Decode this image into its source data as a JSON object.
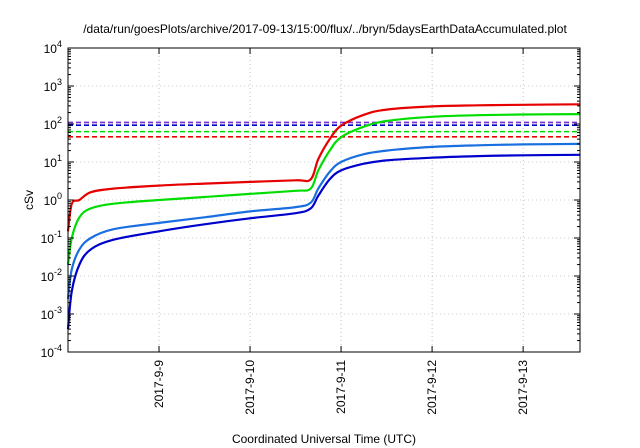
{
  "chart_data": {
    "type": "line",
    "title": "/data/run/goesPlots/archive/2017-09-13/15:00/flux/../bryn/5daysEarthDataAccumulated.plot",
    "xlabel": "Coordinated Universal Time (UTC)",
    "ylabel": "cSv",
    "y_scale": "log",
    "ylim": [
      0.0001,
      10000
    ],
    "xlim": [
      "2017-09-08 00:00",
      "2017-09-13 15:00"
    ],
    "grid": true,
    "legend": "none",
    "y_ticks": [
      {
        "base": "10",
        "exp": "-4",
        "value": 0.0001
      },
      {
        "base": "10",
        "exp": "-3",
        "value": 0.001
      },
      {
        "base": "10",
        "exp": "-2",
        "value": 0.01
      },
      {
        "base": "10",
        "exp": "-1",
        "value": 0.1
      },
      {
        "base": "10",
        "exp": "0",
        "value": 1
      },
      {
        "base": "10",
        "exp": "1",
        "value": 10
      },
      {
        "base": "10",
        "exp": "2",
        "value": 100
      },
      {
        "base": "10",
        "exp": "3",
        "value": 1000
      },
      {
        "base": "10",
        "exp": "4",
        "value": 10000
      }
    ],
    "x_ticks": [
      {
        "label": "2017-9-9",
        "x": "2017-09-09 00:00"
      },
      {
        "label": "2017-9-10",
        "x": "2017-09-10 00:00"
      },
      {
        "label": "2017-9-11",
        "x": "2017-09-11 00:00"
      },
      {
        "label": "2017-9-12",
        "x": "2017-09-12 00:00"
      },
      {
        "label": "2017-9-13",
        "x": "2017-09-13 00:00"
      }
    ],
    "series": [
      {
        "color": "#e60000",
        "x": [
          "2017-09-08 00:00",
          "2017-09-08 01:00",
          "2017-09-08 03:00",
          "2017-09-08 06:00",
          "2017-09-08 12:00",
          "2017-09-09 00:00",
          "2017-09-09 12:00",
          "2017-09-10 00:00",
          "2017-09-10 12:00",
          "2017-09-10 16:00",
          "2017-09-10 18:00",
          "2017-09-10 21:00",
          "2017-09-11 00:00",
          "2017-09-11 06:00",
          "2017-09-11 12:00",
          "2017-09-12 00:00",
          "2017-09-12 12:00",
          "2017-09-13 00:00",
          "2017-09-13 15:00"
        ],
        "values": [
          0.15,
          0.8,
          1.0,
          1.6,
          2.0,
          2.4,
          2.7,
          3.0,
          3.3,
          3.5,
          12,
          40,
          90,
          175,
          240,
          290,
          310,
          320,
          330
        ]
      },
      {
        "color": "#00dd00",
        "x": [
          "2017-09-08 00:00",
          "2017-09-08 01:00",
          "2017-09-08 03:00",
          "2017-09-08 06:00",
          "2017-09-08 12:00",
          "2017-09-09 00:00",
          "2017-09-09 12:00",
          "2017-09-10 00:00",
          "2017-09-10 12:00",
          "2017-09-10 16:00",
          "2017-09-10 18:00",
          "2017-09-10 21:00",
          "2017-09-11 00:00",
          "2017-09-11 06:00",
          "2017-09-11 12:00",
          "2017-09-12 00:00",
          "2017-09-12 12:00",
          "2017-09-13 00:00",
          "2017-09-13 15:00"
        ],
        "values": [
          0.02,
          0.1,
          0.35,
          0.6,
          0.8,
          1.0,
          1.2,
          1.45,
          1.75,
          2.0,
          6,
          20,
          45,
          85,
          120,
          155,
          170,
          178,
          182
        ]
      },
      {
        "color": "#1a6fe0",
        "x": [
          "2017-09-08 00:00",
          "2017-09-08 01:00",
          "2017-09-08 03:00",
          "2017-09-08 06:00",
          "2017-09-08 12:00",
          "2017-09-09 00:00",
          "2017-09-09 12:00",
          "2017-09-10 00:00",
          "2017-09-10 12:00",
          "2017-09-10 16:00",
          "2017-09-10 18:00",
          "2017-09-10 21:00",
          "2017-09-11 00:00",
          "2017-09-11 06:00",
          "2017-09-11 12:00",
          "2017-09-12 00:00",
          "2017-09-12 12:00",
          "2017-09-13 00:00",
          "2017-09-13 15:00"
        ],
        "values": [
          0.0025,
          0.015,
          0.05,
          0.1,
          0.17,
          0.25,
          0.35,
          0.5,
          0.65,
          0.85,
          2.0,
          5.5,
          10,
          16,
          20,
          25,
          27.5,
          29,
          30
        ]
      },
      {
        "color": "#0000cc",
        "x": [
          "2017-09-08 00:00",
          "2017-09-08 01:00",
          "2017-09-08 03:00",
          "2017-09-08 06:00",
          "2017-09-08 12:00",
          "2017-09-09 00:00",
          "2017-09-09 12:00",
          "2017-09-10 00:00",
          "2017-09-10 12:00",
          "2017-09-10 16:00",
          "2017-09-10 18:00",
          "2017-09-10 21:00",
          "2017-09-11 00:00",
          "2017-09-11 06:00",
          "2017-09-11 12:00",
          "2017-09-12 00:00",
          "2017-09-12 12:00",
          "2017-09-13 00:00",
          "2017-09-13 15:00"
        ],
        "values": [
          0.0004,
          0.004,
          0.02,
          0.05,
          0.09,
          0.15,
          0.23,
          0.33,
          0.45,
          0.6,
          1.3,
          3.5,
          6.0,
          9.0,
          11,
          13,
          14.3,
          15,
          15.5
        ]
      }
    ],
    "reference_lines": [
      {
        "color": "#7b2fcf",
        "value": 110
      },
      {
        "color": "#0000cc",
        "value": 93
      },
      {
        "color": "#00dd00",
        "value": 63
      },
      {
        "color": "#e60000",
        "value": 46
      }
    ]
  }
}
